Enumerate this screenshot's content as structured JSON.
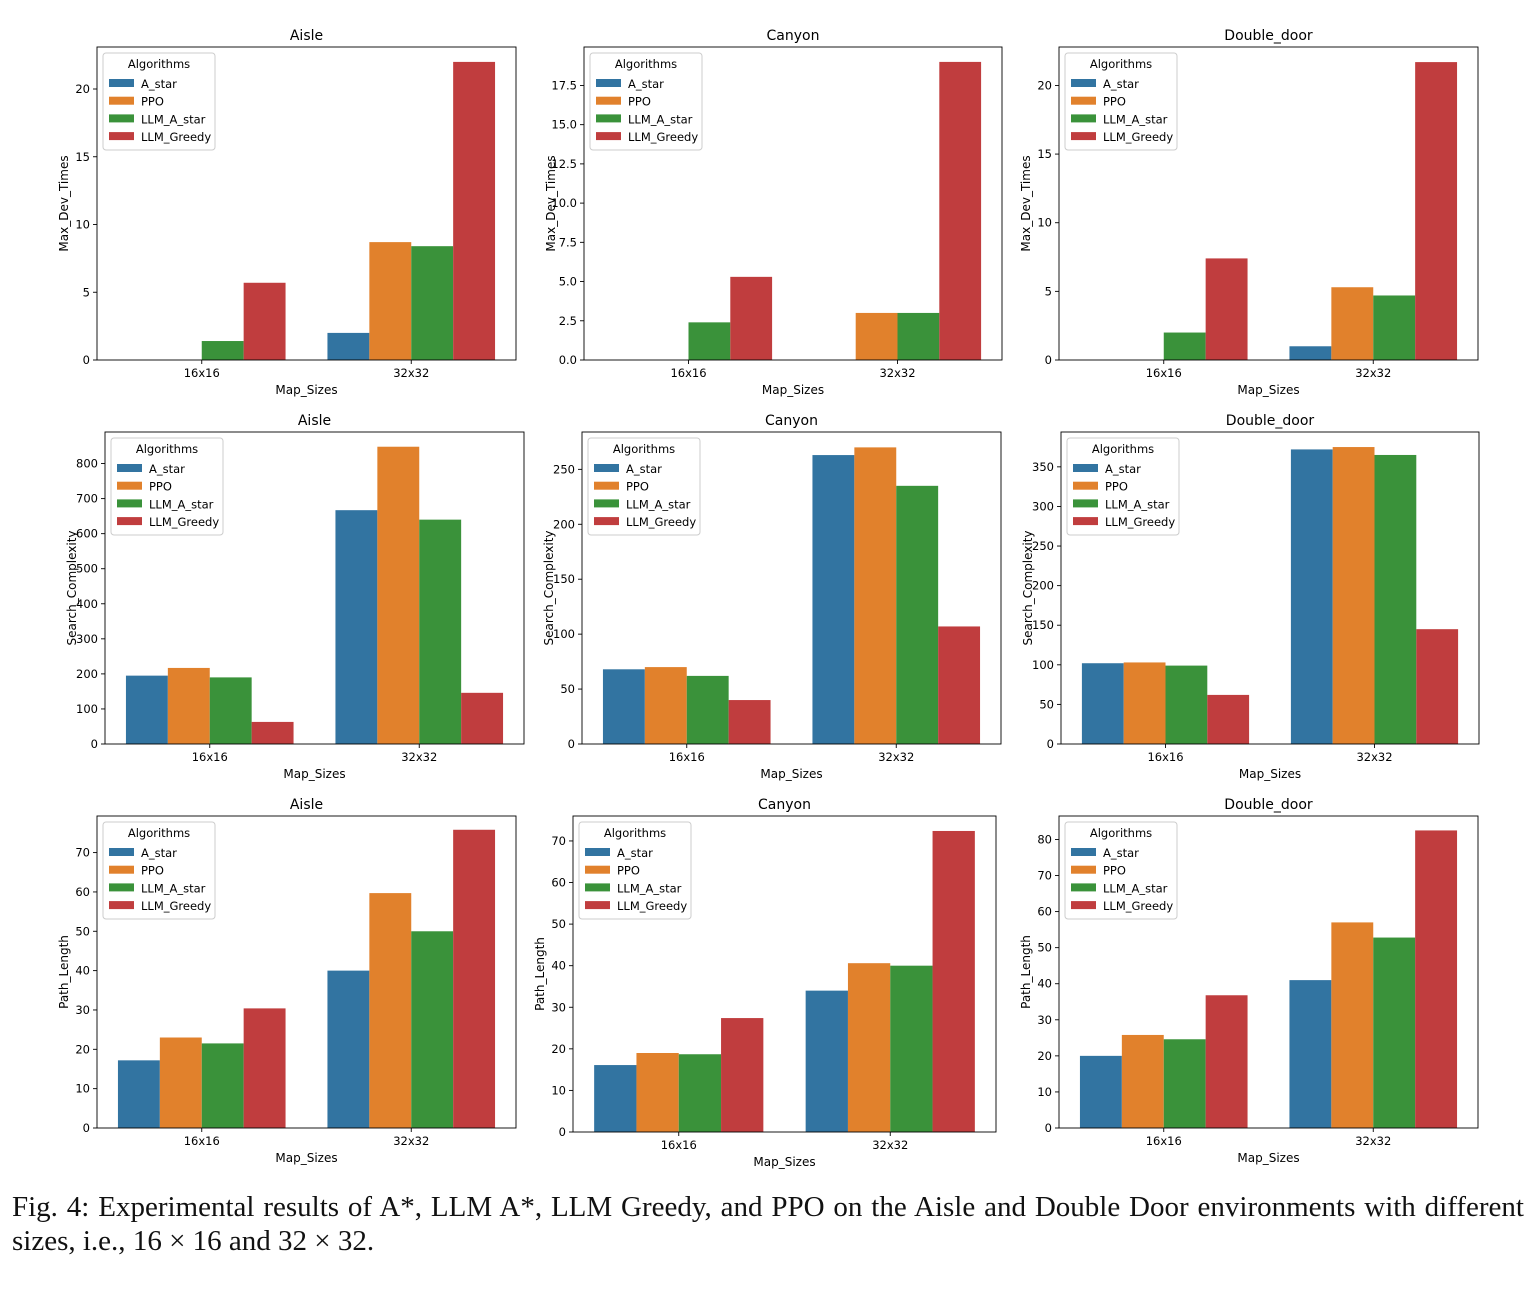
{
  "colors": {
    "A_star": "#3274a1",
    "PPO": "#e1812c",
    "LLM_A_star": "#3a923a",
    "LLM_Greedy": "#c03d3e"
  },
  "legend": {
    "title": "Algorithms",
    "entries": [
      "A_star",
      "PPO",
      "LLM_A_star",
      "LLM_Greedy"
    ]
  },
  "chart_data": [
    {
      "type": "bar",
      "title": "Aisle",
      "xlabel": "Map_Sizes",
      "ylabel": "Max_Dev_Times",
      "categories": [
        "16x16",
        "32x32"
      ],
      "ylim": [
        0,
        23.1
      ],
      "yticks": [
        0,
        5,
        10,
        15,
        20
      ],
      "tick_labels": [
        "0",
        "5",
        "10",
        "15",
        "20"
      ],
      "legend_position": "top-left",
      "series": [
        {
          "name": "A_star",
          "values": [
            0,
            2.0
          ]
        },
        {
          "name": "PPO",
          "values": [
            0,
            8.7
          ]
        },
        {
          "name": "LLM_A_star",
          "values": [
            1.4,
            8.4
          ]
        },
        {
          "name": "LLM_Greedy",
          "values": [
            5.7,
            22.0
          ]
        }
      ]
    },
    {
      "type": "bar",
      "title": "Canyon",
      "xlabel": "Map_Sizes",
      "ylabel": "Max_Dev_Times",
      "categories": [
        "16x16",
        "32x32"
      ],
      "ylim": [
        0,
        19.95
      ],
      "yticks": [
        0,
        2.5,
        5,
        7.5,
        10,
        12.5,
        15,
        17.5
      ],
      "tick_labels": [
        "0.0",
        "2.5",
        "5.0",
        "7.5",
        "10.0",
        "12.5",
        "15.0",
        "17.5"
      ],
      "legend_position": "top-left",
      "series": [
        {
          "name": "A_star",
          "values": [
            0,
            0
          ]
        },
        {
          "name": "PPO",
          "values": [
            0,
            3.0
          ]
        },
        {
          "name": "LLM_A_star",
          "values": [
            2.4,
            3.0
          ]
        },
        {
          "name": "LLM_Greedy",
          "values": [
            5.3,
            19.0
          ]
        }
      ]
    },
    {
      "type": "bar",
      "title": "Double_door",
      "xlabel": "Map_Sizes",
      "ylabel": "Max_Dev_Times",
      "categories": [
        "16x16",
        "32x32"
      ],
      "ylim": [
        0,
        22.8
      ],
      "yticks": [
        0,
        5,
        10,
        15,
        20
      ],
      "tick_labels": [
        "0",
        "5",
        "10",
        "15",
        "20"
      ],
      "legend_position": "top-left",
      "series": [
        {
          "name": "A_star",
          "values": [
            0,
            1.0
          ]
        },
        {
          "name": "PPO",
          "values": [
            0,
            5.3
          ]
        },
        {
          "name": "LLM_A_star",
          "values": [
            2.0,
            4.7
          ]
        },
        {
          "name": "LLM_Greedy",
          "values": [
            7.4,
            21.7
          ]
        }
      ]
    },
    {
      "type": "bar",
      "title": "Aisle",
      "xlabel": "Map_Sizes",
      "ylabel": "Search_Complexity",
      "categories": [
        "16x16",
        "32x32"
      ],
      "ylim": [
        0,
        890
      ],
      "yticks": [
        0,
        100,
        200,
        300,
        400,
        500,
        600,
        700,
        800
      ],
      "tick_labels": [
        "0",
        "100",
        "200",
        "300",
        "400",
        "500",
        "600",
        "700",
        "800"
      ],
      "legend_position": "top-left",
      "series": [
        {
          "name": "A_star",
          "values": [
            195,
            667
          ]
        },
        {
          "name": "PPO",
          "values": [
            217,
            848
          ]
        },
        {
          "name": "LLM_A_star",
          "values": [
            190,
            640
          ]
        },
        {
          "name": "LLM_Greedy",
          "values": [
            63,
            146
          ]
        }
      ]
    },
    {
      "type": "bar",
      "title": "Canyon",
      "xlabel": "Map_Sizes",
      "ylabel": "Search_Complexity",
      "categories": [
        "16x16",
        "32x32"
      ],
      "ylim": [
        0,
        284
      ],
      "yticks": [
        0,
        50,
        100,
        150,
        200,
        250
      ],
      "tick_labels": [
        "0",
        "50",
        "100",
        "150",
        "200",
        "250"
      ],
      "legend_position": "top-left",
      "series": [
        {
          "name": "A_star",
          "values": [
            68,
            263
          ]
        },
        {
          "name": "PPO",
          "values": [
            70,
            270
          ]
        },
        {
          "name": "LLM_A_star",
          "values": [
            62,
            235
          ]
        },
        {
          "name": "LLM_Greedy",
          "values": [
            40,
            107
          ]
        }
      ]
    },
    {
      "type": "bar",
      "title": "Double_door",
      "xlabel": "Map_Sizes",
      "ylabel": "Search_Complexity",
      "categories": [
        "16x16",
        "32x32"
      ],
      "ylim": [
        0,
        394
      ],
      "yticks": [
        0,
        50,
        100,
        150,
        200,
        250,
        300,
        350
      ],
      "tick_labels": [
        "0",
        "50",
        "100",
        "150",
        "200",
        "250",
        "300",
        "350"
      ],
      "legend_position": "top-left",
      "series": [
        {
          "name": "A_star",
          "values": [
            102,
            372
          ]
        },
        {
          "name": "PPO",
          "values": [
            103,
            375
          ]
        },
        {
          "name": "LLM_A_star",
          "values": [
            99,
            365
          ]
        },
        {
          "name": "LLM_Greedy",
          "values": [
            62,
            145
          ]
        }
      ]
    },
    {
      "type": "bar",
      "title": "Aisle",
      "xlabel": "Map_Sizes",
      "ylabel": "Path_Length",
      "categories": [
        "16x16",
        "32x32"
      ],
      "ylim": [
        0,
        79.3
      ],
      "yticks": [
        0,
        10,
        20,
        30,
        40,
        50,
        60,
        70
      ],
      "tick_labels": [
        "0",
        "10",
        "20",
        "30",
        "40",
        "50",
        "60",
        "70"
      ],
      "legend_position": "top-left",
      "series": [
        {
          "name": "A_star",
          "values": [
            17.2,
            40.0
          ]
        },
        {
          "name": "PPO",
          "values": [
            23.0,
            59.7
          ]
        },
        {
          "name": "LLM_A_star",
          "values": [
            21.5,
            50.0
          ]
        },
        {
          "name": "LLM_Greedy",
          "values": [
            30.4,
            75.8
          ]
        }
      ]
    },
    {
      "type": "bar",
      "title": "Canyon",
      "xlabel": "Map_Sizes",
      "ylabel": "Path_Length",
      "categories": [
        "16x16",
        "32x32"
      ],
      "ylim": [
        0,
        76
      ],
      "yticks": [
        0,
        10,
        20,
        30,
        40,
        50,
        60,
        70
      ],
      "tick_labels": [
        "0",
        "10",
        "20",
        "30",
        "40",
        "50",
        "60",
        "70"
      ],
      "legend_position": "top-left",
      "series": [
        {
          "name": "A_star",
          "values": [
            16.1,
            34.0
          ]
        },
        {
          "name": "PPO",
          "values": [
            19.0,
            40.6
          ]
        },
        {
          "name": "LLM_A_star",
          "values": [
            18.7,
            40.0
          ]
        },
        {
          "name": "LLM_Greedy",
          "values": [
            27.4,
            72.4
          ]
        }
      ]
    },
    {
      "type": "bar",
      "title": "Double_door",
      "xlabel": "Map_Sizes",
      "ylabel": "Path_Length",
      "categories": [
        "16x16",
        "32x32"
      ],
      "ylim": [
        0,
        86.5
      ],
      "yticks": [
        0,
        10,
        20,
        30,
        40,
        50,
        60,
        70,
        80
      ],
      "tick_labels": [
        "0",
        "10",
        "20",
        "30",
        "40",
        "50",
        "60",
        "70",
        "80"
      ],
      "legend_position": "top-left",
      "series": [
        {
          "name": "A_star",
          "values": [
            20.0,
            41.0
          ]
        },
        {
          "name": "PPO",
          "values": [
            25.8,
            57.0
          ]
        },
        {
          "name": "LLM_A_star",
          "values": [
            24.6,
            52.8
          ]
        },
        {
          "name": "LLM_Greedy",
          "values": [
            36.8,
            82.5
          ]
        }
      ]
    }
  ],
  "caption": {
    "before": "Fig. 4: Experimental results of A*, LLM A*, LLM Greedy, and PPO on the Aisle and Double Door environments with different sizes, i.e.,",
    "n1": "16",
    "times": "×",
    "n2": "16",
    "mid": "and",
    "n3": "32",
    "n4": "32",
    "end": "."
  }
}
